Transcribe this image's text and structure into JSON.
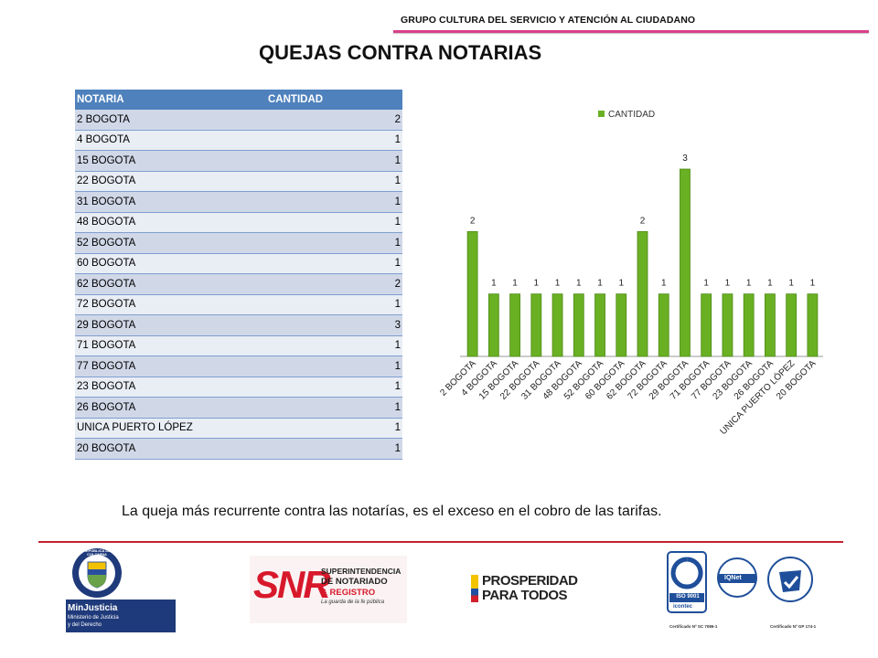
{
  "header": {
    "org_name": "GRUPO CULTURA DEL SERVICIO Y ATENCIÓN AL CIUDADANO",
    "title": "QUEJAS CONTRA NOTARIAS"
  },
  "table": {
    "columns": [
      "NOTARIA",
      "CANTIDAD"
    ],
    "rows": [
      {
        "notaria": "2 BOGOTA",
        "cantidad": "2"
      },
      {
        "notaria": "4 BOGOTA",
        "cantidad": "1"
      },
      {
        "notaria": "15 BOGOTA",
        "cantidad": "1"
      },
      {
        "notaria": "22 BOGOTA",
        "cantidad": "1"
      },
      {
        "notaria": "31 BOGOTA",
        "cantidad": "1"
      },
      {
        "notaria": "48 BOGOTA",
        "cantidad": "1"
      },
      {
        "notaria": "52 BOGOTA",
        "cantidad": "1"
      },
      {
        "notaria": "60 BOGOTA",
        "cantidad": "1"
      },
      {
        "notaria": "62 BOGOTA",
        "cantidad": "2"
      },
      {
        "notaria": "72 BOGOTA",
        "cantidad": "1"
      },
      {
        "notaria": "29 BOGOTA",
        "cantidad": "3"
      },
      {
        "notaria": "71 BOGOTA",
        "cantidad": "1"
      },
      {
        "notaria": "77 BOGOTA",
        "cantidad": "1"
      },
      {
        "notaria": "23 BOGOTA",
        "cantidad": "1"
      },
      {
        "notaria": "26 BOGOTA",
        "cantidad": "1"
      },
      {
        "notaria": "UNICA PUERTO LÓPEZ",
        "cantidad": "1"
      },
      {
        "notaria": "20 BOGOTA",
        "cantidad": "1"
      }
    ]
  },
  "chart_data": {
    "type": "bar",
    "categories": [
      "2 BOGOTA",
      "4 BOGOTA",
      "15 BOGOTA",
      "22 BOGOTA",
      "31 BOGOTA",
      "48 BOGOTA",
      "52 BOGOTA",
      "60 BOGOTA",
      "62 BOGOTA",
      "72 BOGOTA",
      "29 BOGOTA",
      "71 BOGOTA",
      "77 BOGOTA",
      "23 BOGOTA",
      "26 BOGOTA",
      "UNICA PUERTO LÓPEZ",
      "20 BOGOTA"
    ],
    "series": [
      {
        "name": "CANTIDAD",
        "values": [
          2,
          1,
          1,
          1,
          1,
          1,
          1,
          1,
          2,
          1,
          3,
          1,
          1,
          1,
          1,
          1,
          1
        ]
      }
    ],
    "ylim": [
      0,
      3
    ],
    "grid": false,
    "legend": "top-center",
    "data_labels": true,
    "bar_color": "#6ab023"
  },
  "footnote": "La queja más  recurrente contra las notarías, es el exceso en el cobro de las tarifas.",
  "logos": {
    "minjusticia": {
      "crest_text": "REPÚBLICA DE COLOMBIA",
      "name": "MinJusticia",
      "line1": "Ministerio de Justicia",
      "line2": "y del Derecho"
    },
    "snr": {
      "mark": "SNR",
      "line1": "SUPERINTENDENCIA",
      "line2": "DE NOTARIADO",
      "line3": "& REGISTRO",
      "tagline": "La guarda de la fe pública"
    },
    "prosperidad": {
      "line1": "PROSPERIDAD",
      "line2": "PARA TODOS"
    },
    "certs": {
      "iso": "ISO 9001",
      "icontec": "icontec",
      "iqnet": "IQNet",
      "cert1": "Certificado Nº SC 7086-1",
      "cert2": "Certificado Nº GP 174-1"
    }
  },
  "colors": {
    "header_blue": "#4f81bd",
    "row_odd": "#d0d8e8",
    "row_even": "#e9edf4",
    "pink_rule": "#d9418a",
    "red_rule": "#c0232e",
    "bar_green": "#6ab023"
  }
}
